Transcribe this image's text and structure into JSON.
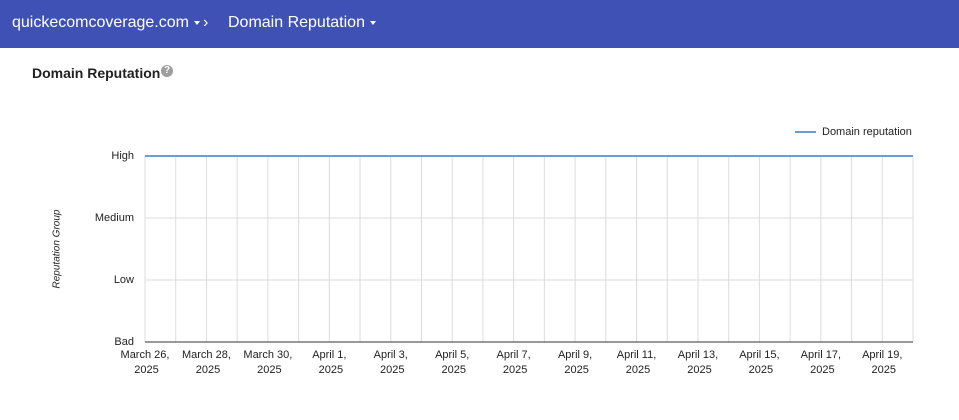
{
  "header": {
    "breadcrumb": [
      "quickecomcoverage.com",
      "Domain Reputation"
    ]
  },
  "page_title": "Domain Reputation",
  "chart_data": {
    "type": "line",
    "y_label": "Reputation Group",
    "categories": [
      "March 26, 2025",
      null,
      "March 28, 2025",
      null,
      "March 30, 2025",
      null,
      "April 1, 2025",
      null,
      "April 3, 2025",
      null,
      "April 5, 2025",
      null,
      "April 7, 2025",
      null,
      "April 9, 2025",
      null,
      "April 11, 2025",
      null,
      "April 13, 2025",
      null,
      "April 15, 2025",
      null,
      "April 17, 2025",
      null,
      "April 19, 2025",
      null
    ],
    "series": [
      {
        "name": "Domain reputation",
        "color": "#6b9bd8",
        "values": [
          3,
          3,
          3,
          3,
          3,
          3,
          3,
          3,
          3,
          3,
          3,
          3,
          3,
          3,
          3,
          3,
          3,
          3,
          3,
          3,
          3,
          3,
          3,
          3,
          3,
          3
        ]
      }
    ],
    "ylim": [
      0,
      3
    ],
    "yticks": [
      {
        "value": 0,
        "label": "Bad"
      },
      {
        "value": 1,
        "label": "Low"
      },
      {
        "value": 2,
        "label": "Medium"
      },
      {
        "value": 3,
        "label": "High"
      }
    ],
    "grid": true,
    "legend": "top-right"
  }
}
